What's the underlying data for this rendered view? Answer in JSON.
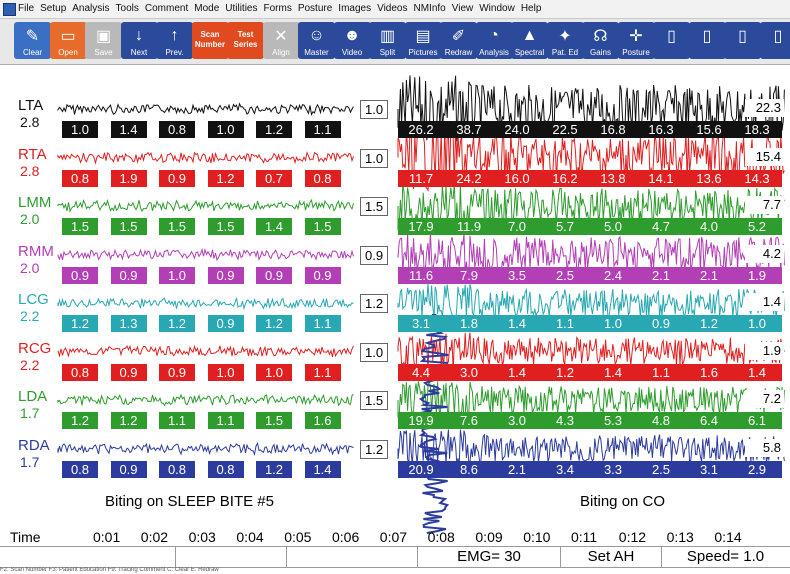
{
  "menu": [
    "File",
    "Setup",
    "Analysis",
    "Tools",
    "Comment",
    "Mode",
    "Utilities",
    "Forms",
    "Posture",
    "Images",
    "Videos",
    "NMInfo",
    "View",
    "Window",
    "Help"
  ],
  "toolbar": [
    {
      "label": "Clear",
      "icon": "clear-icon",
      "bg": "#3a6fc4"
    },
    {
      "label": "Open",
      "icon": "open-folder-icon",
      "bg": "#e76b2a"
    },
    {
      "label": "Save",
      "icon": "save-icon",
      "bg": "#b9b9b9"
    },
    {
      "label": "Next",
      "icon": "arrow-down-icon",
      "bg": "#2b4a9b"
    },
    {
      "label": "Prev.",
      "icon": "arrow-up-icon",
      "bg": "#2b4a9b"
    },
    {
      "label": "Scan Number",
      "icon": "scan-number-icon",
      "bg": "#e04a1e"
    },
    {
      "label": "Test Series",
      "icon": "test-series-icon",
      "bg": "#e04a1e"
    },
    {
      "label": "Align",
      "icon": "align-icon",
      "bg": "#b9b9b9"
    },
    {
      "label": "Master",
      "icon": "master-icon",
      "bg": "#2b4a9b"
    },
    {
      "label": "Video",
      "icon": "video-icon",
      "bg": "#2b4a9b"
    },
    {
      "label": "Split",
      "icon": "split-icon",
      "bg": "#2b4a9b"
    },
    {
      "label": "Pictures",
      "icon": "pictures-icon",
      "bg": "#2b4a9b"
    },
    {
      "label": "Redraw",
      "icon": "redraw-icon",
      "bg": "#2b4a9b"
    },
    {
      "label": "Analysis",
      "icon": "analysis-icon",
      "bg": "#2b4a9b"
    },
    {
      "label": "Spectral",
      "icon": "spectral-icon",
      "bg": "#2b4a9b"
    },
    {
      "label": "Pat. Ed",
      "icon": "patient-education-icon",
      "bg": "#2b4a9b"
    },
    {
      "label": "Gains",
      "icon": "gains-icon",
      "bg": "#2b4a9b"
    },
    {
      "label": "Posture",
      "icon": "posture-icon",
      "bg": "#2b4a9b"
    },
    {
      "label": "",
      "icon": "form-1-icon",
      "bg": "#2b4a9b"
    },
    {
      "label": "",
      "icon": "form-2-icon",
      "bg": "#2b4a9b"
    },
    {
      "label": "",
      "icon": "form-3-icon",
      "bg": "#2b4a9b"
    },
    {
      "label": "",
      "icon": "form-4-icon",
      "bg": "#2b4a9b"
    }
  ],
  "channels": [
    {
      "name": "LTA",
      "gain": "2.8",
      "color": "#111111",
      "mid": "1.0",
      "right": "22.3",
      "left_vals": [
        "1.0",
        "1.4",
        "0.8",
        "1.0",
        "1.2",
        "1.1"
      ],
      "right_vals": [
        "26.2",
        "38.7",
        "24.0",
        "22.5",
        "16.8",
        "16.3",
        "15.6",
        "18.3"
      ]
    },
    {
      "name": "RTA",
      "gain": "2.8",
      "color": "#e02020",
      "mid": "1.0",
      "right": "15.4",
      "left_vals": [
        "0.8",
        "1.9",
        "0.9",
        "1.2",
        "0.7",
        "0.8"
      ],
      "right_vals": [
        "11.7",
        "24.2",
        "16.0",
        "16.2",
        "13.8",
        "14.1",
        "13.6",
        "14.3"
      ]
    },
    {
      "name": "LMM",
      "gain": "2.0",
      "color": "#2e9d2e",
      "mid": "1.5",
      "right": "7.7",
      "left_vals": [
        "1.5",
        "1.5",
        "1.5",
        "1.5",
        "1.4",
        "1.5"
      ],
      "right_vals": [
        "17.9",
        "11.9",
        "7.0",
        "5.7",
        "5.0",
        "4.7",
        "4.0",
        "5.2"
      ]
    },
    {
      "name": "RMM",
      "gain": "2.0",
      "color": "#b23fb5",
      "mid": "0.9",
      "right": "4.2",
      "left_vals": [
        "0.9",
        "0.9",
        "1.0",
        "0.9",
        "0.9",
        "0.9"
      ],
      "right_vals": [
        "11.6",
        "7.9",
        "3.5",
        "2.5",
        "2.4",
        "2.1",
        "2.1",
        "1.9"
      ]
    },
    {
      "name": "LCG",
      "gain": "2.2",
      "color": "#27a8b3",
      "mid": "1.2",
      "right": "1.4",
      "left_vals": [
        "1.2",
        "1.3",
        "1.2",
        "0.9",
        "1.2",
        "1.1"
      ],
      "right_vals": [
        "3.1",
        "1.8",
        "1.4",
        "1.1",
        "1.0",
        "0.9",
        "1.2",
        "1.0"
      ]
    },
    {
      "name": "RCG",
      "gain": "2.2",
      "color": "#e02020",
      "mid": "1.0",
      "right": "1.9",
      "left_vals": [
        "0.8",
        "0.9",
        "0.9",
        "1.0",
        "1.0",
        "1.1"
      ],
      "right_vals": [
        "4.4",
        "3.0",
        "1.4",
        "1.2",
        "1.4",
        "1.1",
        "1.6",
        "1.4"
      ]
    },
    {
      "name": "LDA",
      "gain": "1.7",
      "color": "#2e9d2e",
      "mid": "1.5",
      "right": "7.2",
      "left_vals": [
        "1.2",
        "1.2",
        "1.1",
        "1.1",
        "1.5",
        "1.6"
      ],
      "right_vals": [
        "19.9",
        "7.6",
        "3.0",
        "4.3",
        "5.3",
        "4.8",
        "6.4",
        "6.1"
      ]
    },
    {
      "name": "RDA",
      "gain": "1.7",
      "color": "#2c3c9e",
      "mid": "1.2",
      "right": "5.8",
      "left_vals": [
        "0.8",
        "0.9",
        "0.8",
        "0.8",
        "1.2",
        "1.4"
      ],
      "right_vals": [
        "20.9",
        "8.6",
        "2.1",
        "3.4",
        "3.3",
        "2.5",
        "3.1",
        "2.9"
      ]
    }
  ],
  "captions": {
    "left": "Biting on SLEEP BITE #5",
    "right": "Biting on CO"
  },
  "time": {
    "label": "Time",
    "ticks": [
      "0:01",
      "0:02",
      "0:03",
      "0:04",
      "0:05",
      "0:06",
      "0:07",
      "0:08",
      "0:09",
      "0:10",
      "0:11",
      "0:12",
      "0:13",
      "0:14"
    ]
  },
  "status": {
    "emg": "EMG= 30",
    "set": "Set AH",
    "speed": "Speed= 1.0"
  },
  "footer": "F2: Scan Number  F3: Patient Education  F9: Tracing Comment  C: Clear  E: Redraw"
}
